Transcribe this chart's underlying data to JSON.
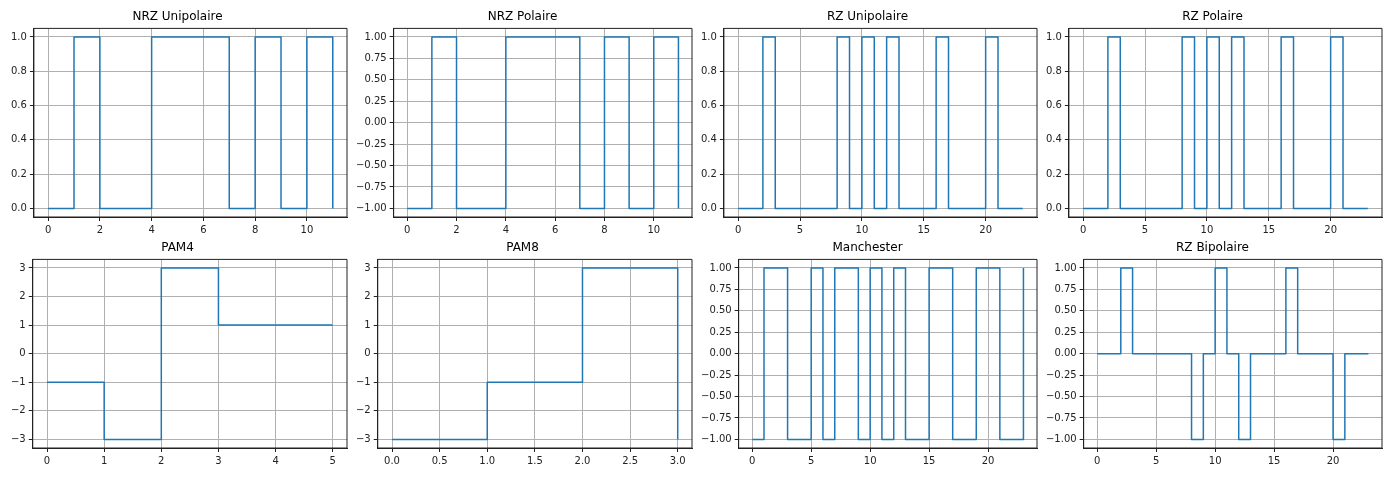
{
  "chart_data": [
    {
      "type": "step",
      "title": "NRZ Unipolaire",
      "x": [
        0,
        1,
        2,
        3,
        4,
        5,
        6,
        7,
        8,
        9,
        10,
        11
      ],
      "values": [
        0,
        1,
        0,
        0,
        1,
        1,
        1,
        0,
        1,
        0,
        1,
        0
      ],
      "color": "#1f77b4",
      "line_style": "solid",
      "xlim": [
        -0.55,
        11.55
      ],
      "ylim": [
        -0.05,
        1.05
      ],
      "xticks": [
        0,
        2,
        4,
        6,
        8,
        10
      ],
      "yticks": [
        {
          "value": 0,
          "label": "0.0"
        },
        {
          "value": 0.2,
          "label": "0.2"
        },
        {
          "value": 0.4,
          "label": "0.4"
        },
        {
          "value": 0.6,
          "label": "0.6"
        },
        {
          "value": 0.8,
          "label": "0.8"
        },
        {
          "value": 1,
          "label": "1.0"
        }
      ],
      "grid": true
    },
    {
      "type": "step",
      "title": "NRZ Polaire",
      "x": [
        0,
        1,
        2,
        3,
        4,
        5,
        6,
        7,
        8,
        9,
        10,
        11
      ],
      "values": [
        -1,
        1,
        -1,
        -1,
        1,
        1,
        1,
        -1,
        1,
        -1,
        1,
        -1
      ],
      "color": "#1f77b4",
      "line_style": "solid",
      "xlim": [
        -0.55,
        11.55
      ],
      "ylim": [
        -1.1,
        1.1
      ],
      "xticks": [
        0,
        2,
        4,
        6,
        8,
        10
      ],
      "yticks": [
        {
          "value": -1,
          "label": "−1.00"
        },
        {
          "value": -0.75,
          "label": "−0.75"
        },
        {
          "value": -0.5,
          "label": "−0.50"
        },
        {
          "value": -0.25,
          "label": "−0.25"
        },
        {
          "value": 0,
          "label": "0.00"
        },
        {
          "value": 0.25,
          "label": "0.25"
        },
        {
          "value": 0.5,
          "label": "0.50"
        },
        {
          "value": 0.75,
          "label": "0.75"
        },
        {
          "value": 1,
          "label": "1.00"
        }
      ],
      "grid": true
    },
    {
      "type": "step",
      "title": "RZ Unipolaire",
      "x": [
        0,
        1,
        2,
        3,
        4,
        5,
        6,
        7,
        8,
        9,
        10,
        11,
        12,
        13,
        14,
        15,
        16,
        17,
        18,
        19,
        20,
        21,
        22,
        23
      ],
      "values": [
        0,
        0,
        1,
        0,
        0,
        0,
        0,
        0,
        1,
        0,
        1,
        0,
        1,
        0,
        0,
        0,
        1,
        0,
        0,
        0,
        1,
        0,
        0,
        0
      ],
      "color": "#1f77b4",
      "line_style": "solid",
      "xlim": [
        -1.15,
        24.15
      ],
      "ylim": [
        -0.05,
        1.05
      ],
      "xticks": [
        0,
        5,
        10,
        15,
        20
      ],
      "yticks": [
        {
          "value": 0,
          "label": "0.0"
        },
        {
          "value": 0.2,
          "label": "0.2"
        },
        {
          "value": 0.4,
          "label": "0.4"
        },
        {
          "value": 0.6,
          "label": "0.6"
        },
        {
          "value": 0.8,
          "label": "0.8"
        },
        {
          "value": 1,
          "label": "1.0"
        }
      ],
      "grid": true
    },
    {
      "type": "step",
      "title": "RZ Polaire",
      "x": [
        0,
        1,
        2,
        3,
        4,
        5,
        6,
        7,
        8,
        9,
        10,
        11,
        12,
        13,
        14,
        15,
        16,
        17,
        18,
        19,
        20,
        21,
        22,
        23
      ],
      "values": [
        0,
        0,
        1,
        0,
        0,
        0,
        0,
        0,
        1,
        0,
        1,
        0,
        1,
        0,
        0,
        0,
        1,
        0,
        0,
        0,
        1,
        0,
        0,
        0
      ],
      "color": "#1f77b4",
      "line_style": "solid",
      "xlim": [
        -1.15,
        24.15
      ],
      "ylim": [
        -0.05,
        1.05
      ],
      "xticks": [
        0,
        5,
        10,
        15,
        20
      ],
      "yticks": [
        {
          "value": 0,
          "label": "0.0"
        },
        {
          "value": 0.2,
          "label": "0.2"
        },
        {
          "value": 0.4,
          "label": "0.4"
        },
        {
          "value": 0.6,
          "label": "0.6"
        },
        {
          "value": 0.8,
          "label": "0.8"
        },
        {
          "value": 1,
          "label": "1.0"
        }
      ],
      "grid": true
    },
    {
      "type": "step",
      "title": "PAM4",
      "x": [
        0,
        1,
        2,
        3,
        4,
        5
      ],
      "values": [
        -1,
        -3,
        3,
        1,
        1,
        1
      ],
      "color": "#1f77b4",
      "line_style": "solid",
      "xlim": [
        -0.25,
        5.25
      ],
      "ylim": [
        -3.3,
        3.3
      ],
      "xticks": [
        0,
        1,
        2,
        3,
        4,
        5
      ],
      "yticks": [
        {
          "value": -3,
          "label": "−3"
        },
        {
          "value": -2,
          "label": "−2"
        },
        {
          "value": -1,
          "label": "−1"
        },
        0,
        1,
        2,
        3
      ],
      "grid": true
    },
    {
      "type": "step",
      "title": "PAM8",
      "x": [
        0,
        1,
        2,
        3
      ],
      "values": [
        -3,
        -1,
        3,
        -3
      ],
      "color": "#1f77b4",
      "line_style": "solid",
      "xlim": [
        -0.15,
        3.15
      ],
      "ylim": [
        -3.3,
        3.3
      ],
      "xticks": [
        {
          "value": 0,
          "label": "0.0"
        },
        0.5,
        {
          "value": 1,
          "label": "1.0"
        },
        1.5,
        {
          "value": 2,
          "label": "2.0"
        },
        2.5,
        {
          "value": 3,
          "label": "3.0"
        }
      ],
      "yticks": [
        {
          "value": -3,
          "label": "−3"
        },
        {
          "value": -2,
          "label": "−2"
        },
        {
          "value": -1,
          "label": "−1"
        },
        0,
        1,
        2,
        3
      ],
      "grid": true
    },
    {
      "type": "step",
      "title": "Manchester",
      "x": [
        0,
        1,
        2,
        3,
        4,
        5,
        6,
        7,
        8,
        9,
        10,
        11,
        12,
        13,
        14,
        15,
        16,
        17,
        18,
        19,
        20,
        21,
        22,
        23
      ],
      "values": [
        -1,
        1,
        1,
        -1,
        -1,
        1,
        -1,
        1,
        1,
        -1,
        1,
        -1,
        1,
        -1,
        -1,
        1,
        1,
        -1,
        -1,
        1,
        1,
        -1,
        -1,
        1
      ],
      "color": "#1f77b4",
      "line_style": "solid",
      "xlim": [
        -1.15,
        24.15
      ],
      "ylim": [
        -1.1,
        1.1
      ],
      "xticks": [
        0,
        5,
        10,
        15,
        20
      ],
      "yticks": [
        {
          "value": -1,
          "label": "−1.00"
        },
        {
          "value": -0.75,
          "label": "−0.75"
        },
        {
          "value": -0.5,
          "label": "−0.50"
        },
        {
          "value": -0.25,
          "label": "−0.25"
        },
        {
          "value": 0,
          "label": "0.00"
        },
        {
          "value": 0.25,
          "label": "0.25"
        },
        {
          "value": 0.5,
          "label": "0.50"
        },
        {
          "value": 0.75,
          "label": "0.75"
        },
        {
          "value": 1,
          "label": "1.00"
        }
      ],
      "grid": true
    },
    {
      "type": "step",
      "title": "RZ Bipolaire",
      "x": [
        0,
        1,
        2,
        3,
        4,
        5,
        6,
        7,
        8,
        9,
        10,
        11,
        12,
        13,
        14,
        15,
        16,
        17,
        18,
        19,
        20,
        21,
        22,
        23
      ],
      "values": [
        0,
        0,
        1,
        0,
        0,
        0,
        0,
        0,
        -1,
        0,
        1,
        0,
        -1,
        0,
        0,
        0,
        1,
        0,
        0,
        0,
        -1,
        0,
        0,
        0
      ],
      "color": "#1f77b4",
      "line_style": "solid",
      "xlim": [
        -1.15,
        24.15
      ],
      "ylim": [
        -1.1,
        1.1
      ],
      "xticks": [
        0,
        5,
        10,
        15,
        20
      ],
      "yticks": [
        {
          "value": -1,
          "label": "−1.00"
        },
        {
          "value": -0.75,
          "label": "−0.75"
        },
        {
          "value": -0.5,
          "label": "−0.50"
        },
        {
          "value": -0.25,
          "label": "−0.25"
        },
        {
          "value": 0,
          "label": "0.00"
        },
        {
          "value": 0.25,
          "label": "0.25"
        },
        {
          "value": 0.5,
          "label": "0.50"
        },
        {
          "value": 0.75,
          "label": "0.75"
        },
        {
          "value": 1,
          "label": "1.00"
        }
      ],
      "grid": true
    }
  ]
}
